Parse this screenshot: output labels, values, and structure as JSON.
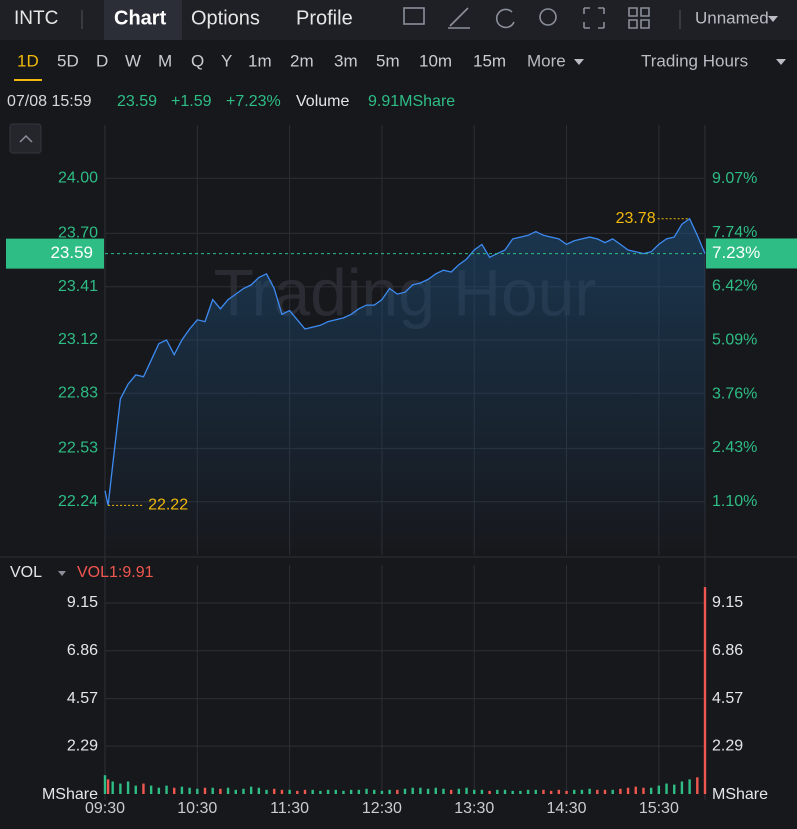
{
  "toolbar": {
    "symbol": "INTC",
    "tabs": [
      "Chart",
      "Options",
      "Profile"
    ],
    "layout": "Unnamed"
  },
  "periods": {
    "items": [
      "1D",
      "5D",
      "D",
      "W",
      "M",
      "Q",
      "Y",
      "1m",
      "2m",
      "3m",
      "5m",
      "10m",
      "15m"
    ],
    "more": "More",
    "session": "Trading Hours"
  },
  "quote": {
    "time": "07/08 15:59",
    "price": "23.59",
    "change": "+1.59",
    "change_pct": "+7.23%",
    "volume_label": "Volume",
    "volume": "9.91MShare"
  },
  "chart_data": [
    {
      "type": "line",
      "watermark": "Trading Hour",
      "color": "#3d8bf2",
      "grid": true,
      "x": [
        0,
        2,
        5,
        10,
        15,
        20,
        25,
        30,
        35,
        40,
        45,
        50,
        55,
        60,
        65,
        70,
        75,
        80,
        85,
        90,
        95,
        100,
        105,
        110,
        115,
        120,
        125,
        130,
        135,
        140,
        145,
        150,
        155,
        160,
        165,
        170,
        175,
        180,
        185,
        190,
        195,
        200,
        205,
        210,
        215,
        220,
        225,
        230,
        235,
        240,
        245,
        250,
        255,
        260,
        265,
        270,
        275,
        280,
        285,
        290,
        295,
        300,
        305,
        310,
        315,
        320,
        325,
        330,
        335,
        340,
        345,
        350,
        355,
        360,
        365,
        370,
        375,
        380,
        385,
        390
      ],
      "values": [
        22.3,
        22.22,
        22.44,
        22.8,
        22.88,
        22.93,
        22.92,
        23.01,
        23.1,
        23.12,
        23.04,
        23.12,
        23.18,
        23.23,
        23.22,
        23.34,
        23.29,
        23.34,
        23.37,
        23.4,
        23.42,
        23.46,
        23.48,
        23.4,
        23.26,
        23.28,
        23.23,
        23.18,
        23.19,
        23.2,
        23.22,
        23.23,
        23.24,
        23.26,
        23.29,
        23.31,
        23.31,
        23.34,
        23.4,
        23.37,
        23.38,
        23.42,
        23.43,
        23.45,
        23.48,
        23.5,
        23.49,
        23.53,
        23.56,
        23.61,
        23.64,
        23.57,
        23.59,
        23.61,
        23.67,
        23.68,
        23.69,
        23.71,
        23.69,
        23.68,
        23.67,
        23.64,
        23.66,
        23.67,
        23.68,
        23.67,
        23.65,
        23.67,
        23.64,
        23.61,
        23.6,
        23.59,
        23.6,
        23.64,
        23.67,
        23.68,
        23.75,
        23.78,
        23.69,
        23.59
      ],
      "xlim": [
        0,
        390
      ],
      "ylim": [
        21.95,
        24.29
      ],
      "yticks": [
        {
          "value": 24.0,
          "label": "24.00"
        },
        {
          "value": 23.7,
          "label": "23.70"
        },
        23.41,
        23.12,
        22.83,
        22.53,
        22.24
      ],
      "y2lim": [
        -0.21,
        10.4
      ],
      "y2ticks": [
        {
          "value": 9.07,
          "label": "9.07%"
        },
        {
          "value": 7.74,
          "label": "7.74%"
        },
        {
          "value": 6.42,
          "label": "6.42%"
        },
        {
          "value": 5.09,
          "label": "5.09%"
        },
        {
          "value": 3.76,
          "label": "3.76%"
        },
        {
          "value": 2.43,
          "label": "2.43%"
        },
        {
          "value": 1.1,
          "label": "1.10%"
        }
      ],
      "last_value": 23.59,
      "last_pct": {
        "value": 7.23,
        "label": "7.23%"
      },
      "high": 23.78,
      "low": 22.22
    },
    {
      "type": "bar",
      "indicator": "VOL",
      "legend": "VOL1:9.91",
      "unit": "MShare",
      "up_color": "#2ebd85",
      "down_color": "#f0574f",
      "x": [
        0,
        2,
        5,
        10,
        15,
        20,
        25,
        30,
        35,
        40,
        45,
        50,
        55,
        60,
        65,
        70,
        75,
        80,
        85,
        90,
        95,
        100,
        105,
        110,
        115,
        120,
        125,
        130,
        135,
        140,
        145,
        150,
        155,
        160,
        165,
        170,
        175,
        180,
        185,
        190,
        195,
        200,
        205,
        210,
        215,
        220,
        225,
        230,
        235,
        240,
        245,
        250,
        255,
        260,
        265,
        270,
        275,
        280,
        285,
        290,
        295,
        300,
        305,
        310,
        315,
        320,
        325,
        330,
        335,
        340,
        345,
        350,
        355,
        360,
        365,
        370,
        375,
        380,
        385,
        390
      ],
      "values": [
        0.9,
        0.7,
        0.6,
        0.5,
        0.6,
        0.4,
        0.5,
        0.4,
        0.3,
        0.4,
        0.3,
        0.35,
        0.3,
        0.25,
        0.3,
        0.3,
        0.25,
        0.3,
        0.2,
        0.25,
        0.35,
        0.3,
        0.2,
        0.25,
        0.2,
        0.2,
        0.15,
        0.2,
        0.2,
        0.15,
        0.2,
        0.2,
        0.15,
        0.2,
        0.2,
        0.25,
        0.2,
        0.15,
        0.2,
        0.2,
        0.25,
        0.3,
        0.3,
        0.25,
        0.3,
        0.25,
        0.2,
        0.25,
        0.3,
        0.2,
        0.2,
        0.15,
        0.2,
        0.2,
        0.15,
        0.15,
        0.2,
        0.2,
        0.2,
        0.15,
        0.2,
        0.15,
        0.2,
        0.2,
        0.25,
        0.2,
        0.2,
        0.2,
        0.25,
        0.3,
        0.35,
        0.3,
        0.3,
        0.4,
        0.5,
        0.45,
        0.6,
        0.7,
        0.8,
        9.91
      ],
      "xlim": [
        0,
        390
      ],
      "ylim": [
        0,
        10.01
      ],
      "yticks": [
        9.15,
        6.86,
        4.57,
        2.29
      ],
      "xticks": [
        {
          "value": 0,
          "label": "09:30"
        },
        {
          "value": 60,
          "label": "10:30"
        },
        {
          "value": 120,
          "label": "11:30"
        },
        {
          "value": 180,
          "label": "12:30"
        },
        {
          "value": 240,
          "label": "13:30"
        },
        {
          "value": 300,
          "label": "14:30"
        },
        {
          "value": 360,
          "label": "15:30"
        }
      ]
    }
  ]
}
